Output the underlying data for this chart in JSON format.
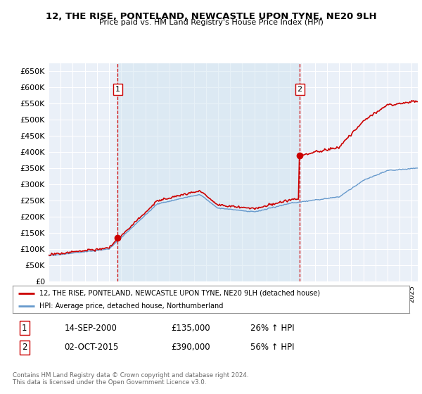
{
  "title": "12, THE RISE, PONTELAND, NEWCASTLE UPON TYNE, NE20 9LH",
  "subtitle": "Price paid vs. HM Land Registry's House Price Index (HPI)",
  "legend_line1": "12, THE RISE, PONTELAND, NEWCASTLE UPON TYNE, NE20 9LH (detached house)",
  "legend_line2": "HPI: Average price, detached house, Northumberland",
  "annotation1_label": "1",
  "annotation1_date": "14-SEP-2000",
  "annotation1_price": "£135,000",
  "annotation1_hpi": "26% ↑ HPI",
  "annotation2_label": "2",
  "annotation2_date": "02-OCT-2015",
  "annotation2_price": "£390,000",
  "annotation2_hpi": "56% ↑ HPI",
  "footer": "Contains HM Land Registry data © Crown copyright and database right 2024.\nThis data is licensed under the Open Government Licence v3.0.",
  "ylim": [
    0,
    675000
  ],
  "yticks": [
    0,
    50000,
    100000,
    150000,
    200000,
    250000,
    300000,
    350000,
    400000,
    450000,
    500000,
    550000,
    600000,
    650000
  ],
  "background_color": "#ffffff",
  "plot_bg_color": "#eaf0f8",
  "grid_color": "#ffffff",
  "red_line_color": "#cc0000",
  "blue_line_color": "#6699cc",
  "vline_color": "#cc0000",
  "marker_color": "#cc0000",
  "purchase1_year": 2000.71,
  "purchase1_price": 135000,
  "purchase2_year": 2015.75,
  "purchase2_price": 390000,
  "vline1_year": 2000.71,
  "vline2_year": 2015.75,
  "xstart": 1995,
  "xend": 2025.5
}
